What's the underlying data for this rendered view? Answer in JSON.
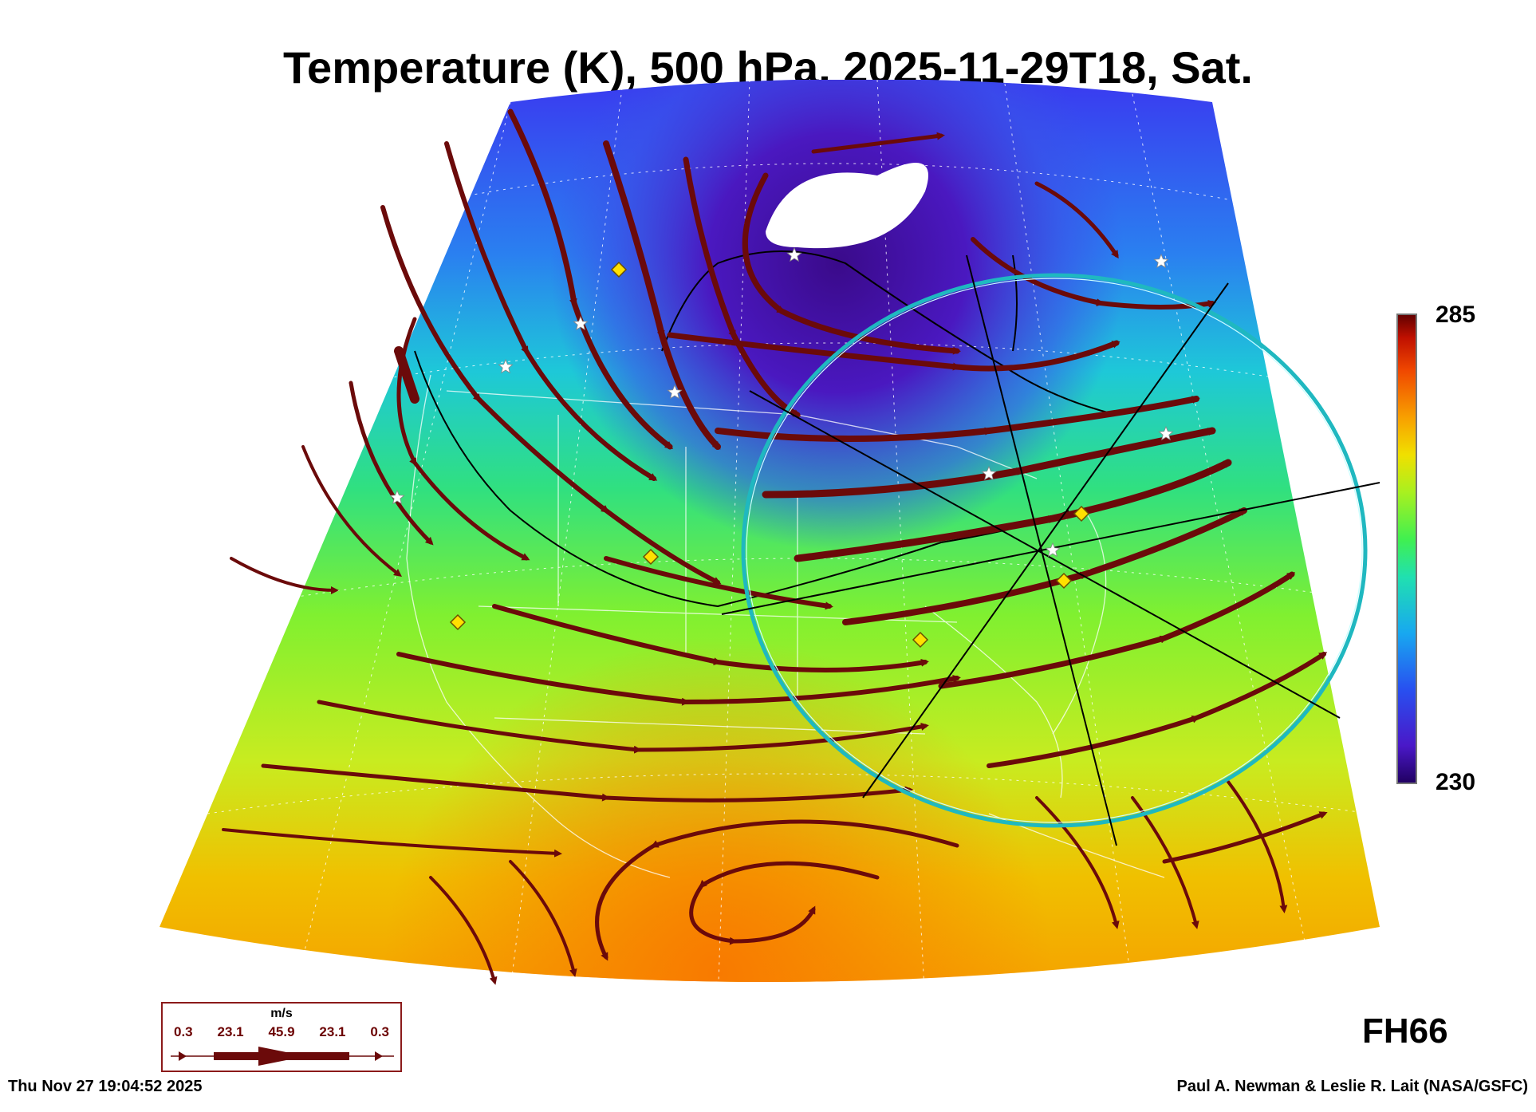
{
  "title": "Temperature (K), 500 hPa, 2025-11-29T18, Sat.",
  "colorbar": {
    "max_label": "285",
    "min_label": "230"
  },
  "forecast_hour": "FH66",
  "legend": {
    "unit": "m/s",
    "values": [
      "0.3",
      "23.1",
      "45.9",
      "23.1",
      "0.3"
    ]
  },
  "footer": {
    "timestamp": "Thu Nov 27 19:04:52 2025",
    "credit": "Paul A. Newman & Leslie R. Lait (NASA/GSFC)"
  },
  "colors": {
    "streamline": "#6b0a0a",
    "circle": "#20c0c0",
    "marker": "#ffe000"
  }
}
